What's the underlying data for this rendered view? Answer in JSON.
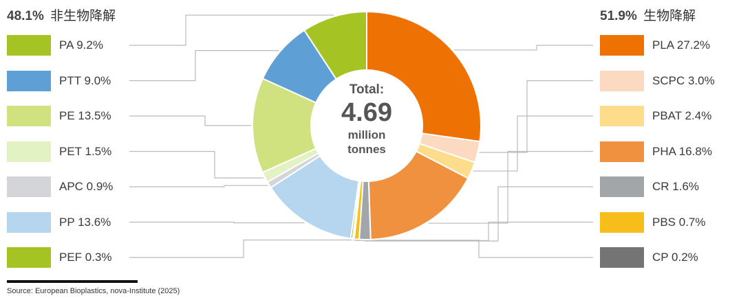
{
  "chart_data": {
    "type": "donut",
    "center": {
      "label": "Total:",
      "value": "4.69",
      "unit_line1": "million",
      "unit_line2": "tonnes"
    },
    "groups": [
      {
        "id": "left",
        "percent": "48.1%",
        "label": "非生物降解"
      },
      {
        "id": "right",
        "percent": "51.9%",
        "label": "生物降解"
      }
    ],
    "slices": [
      {
        "name": "PLA",
        "value": 27.2,
        "text": "PLA 27.2%",
        "color": "#ee7203",
        "group": "right"
      },
      {
        "name": "SCPC",
        "value": 3.0,
        "text": "SCPC 3.0%",
        "color": "#fcd9c1",
        "group": "right"
      },
      {
        "name": "PBAT",
        "value": 2.4,
        "text": "PBAT 2.4%",
        "color": "#fddc8c",
        "group": "right"
      },
      {
        "name": "PHA",
        "value": 16.8,
        "text": "PHA 16.8%",
        "color": "#f0913f",
        "group": "right"
      },
      {
        "name": "CR",
        "value": 1.6,
        "text": "CR 1.6%",
        "color": "#a3a6a9",
        "group": "right"
      },
      {
        "name": "PBS",
        "value": 0.7,
        "text": "PBS 0.7%",
        "color": "#f7be1b",
        "group": "right"
      },
      {
        "name": "CP",
        "value": 0.2,
        "text": "CP 0.2%",
        "color": "#747474",
        "group": "right"
      },
      {
        "name": "PEF",
        "value": 0.3,
        "text": "PEF 0.3%",
        "color": "#a5c424",
        "group": "left"
      },
      {
        "name": "PP",
        "value": 13.6,
        "text": "PP 13.6%",
        "color": "#b5d6ee",
        "group": "left"
      },
      {
        "name": "APC",
        "value": 0.9,
        "text": "APC 0.9%",
        "color": "#d3d5d8",
        "group": "left"
      },
      {
        "name": "PET",
        "value": 1.5,
        "text": "PET 1.5%",
        "color": "#e3f2c3",
        "group": "left"
      },
      {
        "name": "PE",
        "value": 13.5,
        "text": "PE 13.5%",
        "color": "#d0e27f",
        "group": "left"
      },
      {
        "name": "PTT",
        "value": 9.0,
        "text": "PTT 9.0%",
        "color": "#5ea0d6",
        "group": "left"
      },
      {
        "name": "PA",
        "value": 9.2,
        "text": "PA 9.2%",
        "color": "#a5c424",
        "group": "left"
      }
    ],
    "legend_left_order": [
      "PA",
      "PTT",
      "PE",
      "PET",
      "APC",
      "PP",
      "PEF"
    ],
    "legend_right_order": [
      "PLA",
      "SCPC",
      "PBAT",
      "PHA",
      "CR",
      "PBS",
      "CP"
    ]
  },
  "source": "Source: European Bioplastics, nova-Institute (2025)"
}
